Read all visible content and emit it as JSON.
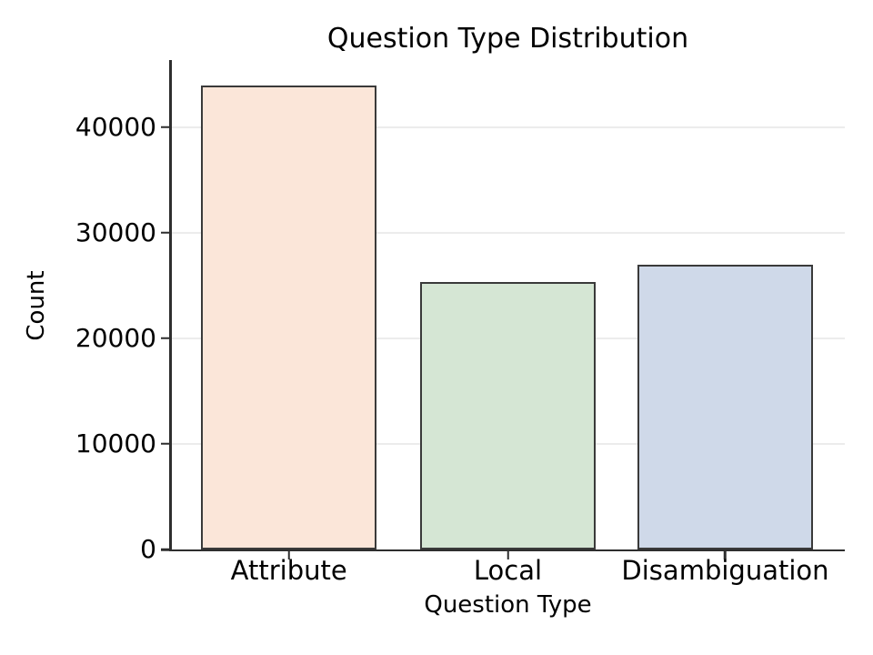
{
  "chart_data": {
    "type": "bar",
    "title": "Question Type Distribution",
    "xlabel": "Question Type",
    "ylabel": "Count",
    "categories": [
      "Attribute",
      "Local",
      "Disambiguation"
    ],
    "values": [
      44000,
      25300,
      27000
    ],
    "yticks": [
      0,
      10000,
      20000,
      30000,
      40000
    ],
    "ylim": [
      0,
      46200
    ],
    "grid": "horizontal-light",
    "legend_position": "none",
    "bar_fill_colors": [
      "#fbe6d9",
      "#d5e6d4",
      "#cfd9e9"
    ],
    "bar_edge_color": "#3a3a3a",
    "spine_color": "#2e2e2e",
    "gridline_color": "#ececec",
    "text_color": "#000000",
    "background_color": "#ffffff"
  }
}
